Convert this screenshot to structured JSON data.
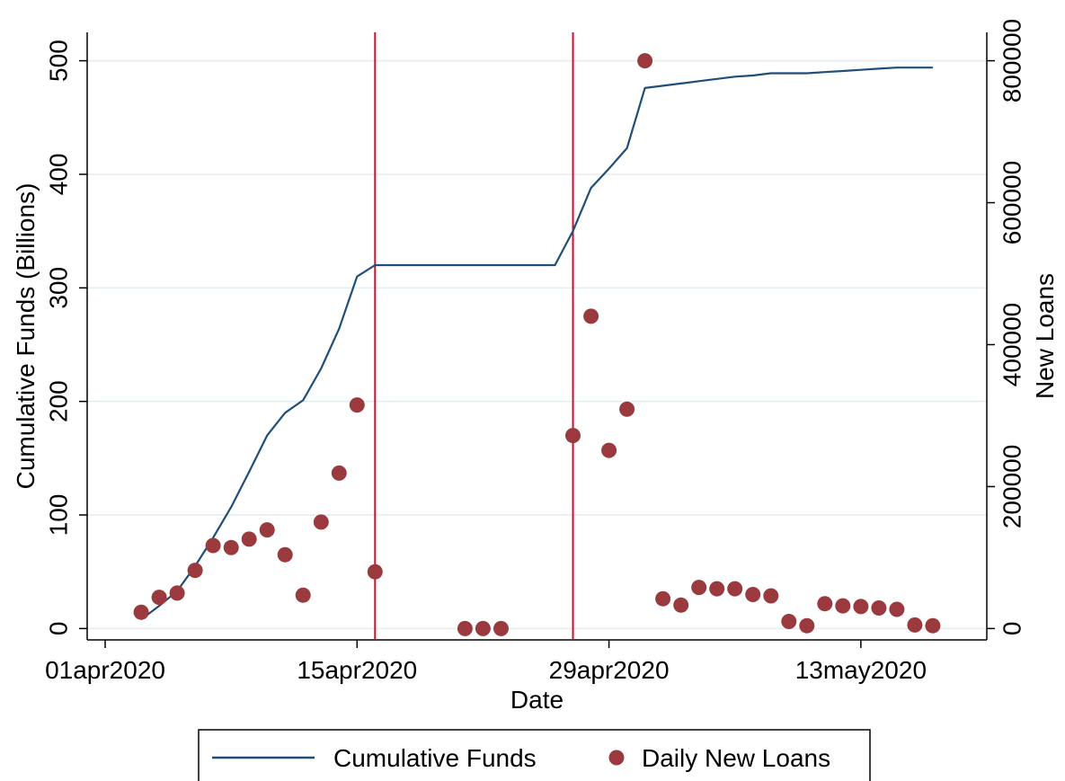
{
  "chart_data": {
    "type": "line",
    "xlabel": "Date",
    "ylabel": "Cumulative Funds (Billions)",
    "y2label": "New Loans",
    "x_axis": {
      "type": "date",
      "range": [
        "2020-03-31",
        "2020-05-20"
      ],
      "tick_labels": [
        "01apr2020",
        "15apr2020",
        "29apr2020",
        "13may2020"
      ],
      "tick_dates": [
        "2020-04-01",
        "2020-04-15",
        "2020-04-29",
        "2020-05-13"
      ]
    },
    "ylim": [
      -10,
      525
    ],
    "yticks": [
      0,
      100,
      200,
      300,
      400,
      500
    ],
    "y2lim": [
      -16000,
      840000
    ],
    "y2ticks": [
      0,
      200000,
      400000,
      600000,
      800000
    ],
    "grid": "horizontal",
    "vertical_lines": {
      "color": "#c8102e",
      "dates": [
        "2020-04-16",
        "2020-04-27"
      ]
    },
    "series": [
      {
        "name": "Cumulative Funds",
        "kind": "line",
        "axis": "left",
        "color": "#1f4e79",
        "points": [
          [
            "2020-04-03",
            8
          ],
          [
            "2020-04-04",
            20
          ],
          [
            "2020-04-05",
            33
          ],
          [
            "2020-04-06",
            55
          ],
          [
            "2020-04-07",
            80
          ],
          [
            "2020-04-08",
            107
          ],
          [
            "2020-04-09",
            138
          ],
          [
            "2020-04-10",
            170
          ],
          [
            "2020-04-11",
            190
          ],
          [
            "2020-04-12",
            201
          ],
          [
            "2020-04-13",
            229
          ],
          [
            "2020-04-14",
            264
          ],
          [
            "2020-04-15",
            310
          ],
          [
            "2020-04-16",
            320
          ],
          [
            "2020-04-26",
            320
          ],
          [
            "2020-04-27",
            350
          ],
          [
            "2020-04-28",
            388
          ],
          [
            "2020-04-29",
            405
          ],
          [
            "2020-04-30",
            423
          ],
          [
            "2020-05-01",
            476
          ],
          [
            "2020-05-02",
            478
          ],
          [
            "2020-05-03",
            480
          ],
          [
            "2020-05-04",
            482
          ],
          [
            "2020-05-05",
            484
          ],
          [
            "2020-05-06",
            486
          ],
          [
            "2020-05-07",
            487
          ],
          [
            "2020-05-08",
            489
          ],
          [
            "2020-05-09",
            489
          ],
          [
            "2020-05-10",
            489
          ],
          [
            "2020-05-11",
            490
          ],
          [
            "2020-05-12",
            491
          ],
          [
            "2020-05-13",
            492
          ],
          [
            "2020-05-14",
            493
          ],
          [
            "2020-05-15",
            494
          ],
          [
            "2020-05-16",
            494
          ],
          [
            "2020-05-17",
            494
          ]
        ]
      },
      {
        "name": "Daily New Loans",
        "kind": "scatter",
        "axis": "right",
        "color": "#9b3a3e",
        "points": [
          [
            "2020-04-03",
            23000
          ],
          [
            "2020-04-04",
            44000
          ],
          [
            "2020-04-05",
            50000
          ],
          [
            "2020-04-06",
            82000
          ],
          [
            "2020-04-07",
            117000
          ],
          [
            "2020-04-08",
            114000
          ],
          [
            "2020-04-09",
            126000
          ],
          [
            "2020-04-10",
            139000
          ],
          [
            "2020-04-11",
            104000
          ],
          [
            "2020-04-12",
            47000
          ],
          [
            "2020-04-13",
            150000
          ],
          [
            "2020-04-14",
            219000
          ],
          [
            "2020-04-15",
            315000
          ],
          [
            "2020-04-16",
            80000
          ],
          [
            "2020-04-21",
            0
          ],
          [
            "2020-04-22",
            0
          ],
          [
            "2020-04-23",
            0
          ],
          [
            "2020-04-27",
            272000
          ],
          [
            "2020-04-28",
            440000
          ],
          [
            "2020-04-29",
            251000
          ],
          [
            "2020-04-30",
            309000
          ],
          [
            "2020-05-01",
            800000
          ],
          [
            "2020-05-02",
            42000
          ],
          [
            "2020-05-03",
            33000
          ],
          [
            "2020-05-04",
            58000
          ],
          [
            "2020-05-05",
            56000
          ],
          [
            "2020-05-06",
            56000
          ],
          [
            "2020-05-07",
            48000
          ],
          [
            "2020-05-08",
            46000
          ],
          [
            "2020-05-09",
            10000
          ],
          [
            "2020-05-10",
            4000
          ],
          [
            "2020-05-11",
            35000
          ],
          [
            "2020-05-12",
            32000
          ],
          [
            "2020-05-13",
            31000
          ],
          [
            "2020-05-14",
            29000
          ],
          [
            "2020-05-15",
            27000
          ],
          [
            "2020-05-16",
            5000
          ],
          [
            "2020-05-17",
            4000
          ]
        ]
      }
    ],
    "legend": {
      "position": "bottom",
      "entries": [
        "Cumulative Funds",
        "Daily New Loans"
      ]
    }
  }
}
